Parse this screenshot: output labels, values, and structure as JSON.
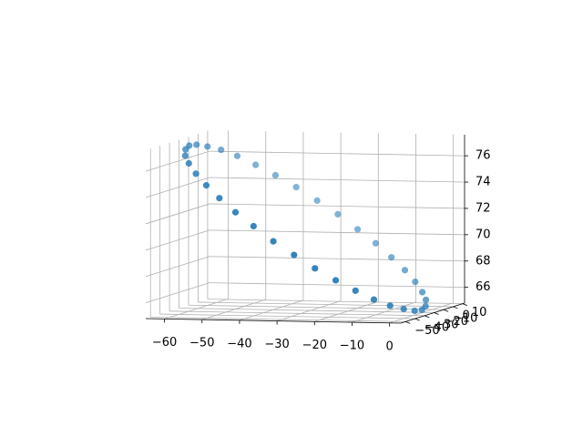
{
  "chart_data": {
    "type": "scatter3d",
    "color": "#1f77b4",
    "grid": true,
    "x": [
      2.0,
      1.2,
      -0.6,
      -3.3,
      -6.8,
      -11.0,
      -15.7,
      -20.9,
      -26.4,
      -32.0,
      -37.5,
      -42.8,
      -47.7,
      -52.1,
      -55.8,
      -58.7,
      -60.8,
      -61.9,
      -62.0,
      -61.2,
      -59.4,
      -56.7,
      -53.2,
      -49.1,
      -44.3,
      -39.1,
      -33.6,
      -28.0,
      -22.5,
      -17.2,
      -12.3,
      -7.9,
      -4.2,
      -1.3,
      0.8,
      1.9
    ],
    "y": [
      -25,
      -21.5,
      -18.2,
      -15,
      -12.1,
      -9.7,
      -7.7,
      -6.2,
      -5.3,
      -5,
      -5.3,
      -6.2,
      -7.7,
      -9.7,
      -12.1,
      -15,
      -18.2,
      -21.5,
      -25,
      -28.5,
      -31.8,
      -35,
      -37.9,
      -40.3,
      -42.3,
      -43.8,
      -44.7,
      -45,
      -44.7,
      -43.8,
      -42.3,
      -40.3,
      -37.9,
      -35,
      -31.8,
      -28.5
    ],
    "z": [
      65.4,
      65.8,
      66.3,
      67.0,
      67.8,
      68.7,
      69.7,
      70.7,
      71.8,
      72.8,
      73.8,
      74.7,
      75.5,
      76.2,
      76.7,
      77.0,
      77.2,
      77.2,
      77.0,
      76.6,
      76.1,
      75.4,
      74.6,
      73.7,
      72.7,
      71.7,
      70.6,
      69.6,
      68.6,
      67.7,
      66.9,
      66.2,
      65.7,
      65.4,
      65.2,
      65.2
    ],
    "xlim": [
      -65,
      3
    ],
    "ylim": [
      -55,
      12
    ],
    "zlim": [
      64.8,
      77.6
    ],
    "xticks": [
      {
        "value": -60,
        "label": "−60"
      },
      {
        "value": -50,
        "label": "−50"
      },
      {
        "value": -40,
        "label": "−40"
      },
      {
        "value": -30,
        "label": "−30"
      },
      {
        "value": -20,
        "label": "−20"
      },
      {
        "value": -10,
        "label": "−10"
      },
      0
    ],
    "yticks": [
      {
        "value": -50,
        "label": "−50"
      },
      {
        "value": -40,
        "label": "−40"
      },
      {
        "value": -30,
        "label": "−30"
      },
      {
        "value": -20,
        "label": "−20"
      },
      {
        "value": -10,
        "label": "−10"
      },
      0,
      10
    ],
    "zticks": [
      66,
      68,
      70,
      72,
      74,
      76
    ]
  }
}
